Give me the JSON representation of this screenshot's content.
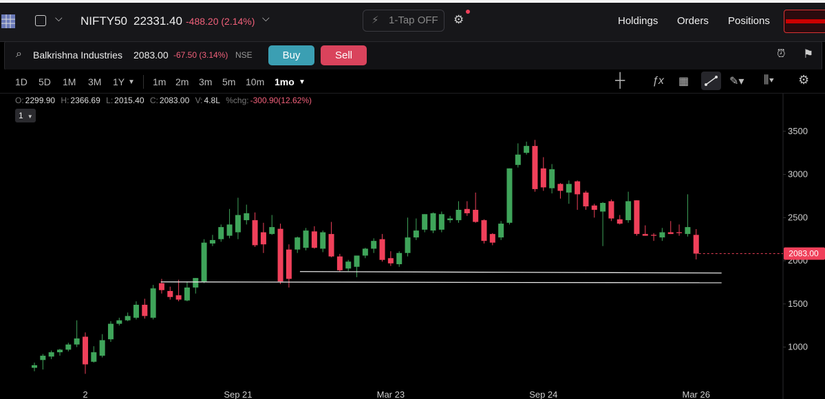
{
  "top_bar": {
    "index": "NIFTY50",
    "price": "22331.40",
    "change": "-488.20 (2.14%)",
    "one_tap": "1-Tap OFF",
    "nav": [
      "Holdings",
      "Orders",
      "Positions"
    ]
  },
  "instrument_bar": {
    "name": "Balkrishna Industries",
    "price": "2083.00",
    "change": "-67.50 (3.14%)",
    "exchange": "NSE",
    "buy": "Buy",
    "sell": "Sell"
  },
  "toolbar": {
    "ranges": [
      "1D",
      "5D",
      "1M",
      "3M",
      "1Y"
    ],
    "intervals": [
      "1m",
      "2m",
      "3m",
      "5m",
      "10m",
      "1mo"
    ]
  },
  "ohlc_legend": {
    "labels": [
      "O:",
      "H:",
      "L:",
      "C:",
      "V:",
      "%chg:"
    ],
    "values": [
      "2299.90",
      "2366.69",
      "2015.40",
      "2083.00",
      "4.8L",
      "-300.90(12.62%)"
    ],
    "pane": "1"
  },
  "chart_data": {
    "type": "candlestick",
    "categories": [
      null,
      null,
      null,
      null,
      null,
      null,
      "2",
      null,
      null,
      null,
      null,
      null,
      null,
      null,
      null,
      null,
      null,
      null,
      null,
      null,
      null,
      null,
      null,
      null,
      "Sep 21",
      null,
      null,
      null,
      null,
      null,
      null,
      null,
      null,
      null,
      null,
      null,
      null,
      null,
      null,
      null,
      null,
      null,
      "Mar 23",
      null,
      null,
      null,
      null,
      null,
      null,
      null,
      null,
      null,
      null,
      null,
      null,
      null,
      null,
      null,
      null,
      null,
      "Sep 24",
      null,
      null,
      null,
      null,
      null,
      null,
      null,
      null,
      null,
      null,
      null,
      null,
      null,
      null,
      null,
      null,
      null,
      "Mar 26"
    ],
    "open": [
      760,
      850,
      890,
      940,
      970,
      1030,
      1120,
      830,
      900,
      1090,
      1270,
      1310,
      1340,
      1490,
      1340,
      1740,
      1650,
      1600,
      1540,
      1690,
      1760,
      2200,
      2250,
      2290,
      2330,
      2470,
      2470,
      2330,
      2310,
      2370,
      2130,
      2130,
      2150,
      2340,
      2140,
      2310,
      2050,
      1910,
      1930,
      2060,
      2140,
      2250,
      2030,
      1960,
      2090,
      2270,
      2360,
      2350,
      2360,
      2470,
      2470,
      2600,
      2590,
      2470,
      2310,
      2270,
      2440,
      3110,
      3250,
      3330,
      3070,
      2840,
      2890,
      2790,
      2920,
      2790,
      2640,
      2570,
      2690,
      2480,
      2470,
      2700,
      2310,
      2300,
      2270,
      2330,
      2330,
      2310,
      2299.9
    ],
    "high": [
      820,
      920,
      960,
      980,
      1050,
      1310,
      1170,
      1010,
      1150,
      1300,
      1340,
      1400,
      1530,
      1560,
      1720,
      1790,
      1700,
      1780,
      1760,
      1800,
      2250,
      2300,
      2420,
      2600,
      2730,
      2650,
      2560,
      2440,
      2530,
      2430,
      2190,
      2280,
      2380,
      2400,
      2350,
      2450,
      2080,
      2010,
      2060,
      2150,
      2260,
      2310,
      2110,
      2110,
      2500,
      2490,
      2540,
      2560,
      2570,
      2520,
      2690,
      2690,
      2790,
      2480,
      2320,
      2460,
      3070,
      3360,
      3380,
      3400,
      3200,
      3120,
      2900,
      2930,
      2930,
      2810,
      2660,
      2680,
      2710,
      2530,
      2800,
      2700,
      2410,
      2320,
      2380,
      2460,
      2420,
      2770,
      2366.69
    ],
    "low": [
      720,
      740,
      860,
      900,
      950,
      1000,
      690,
      820,
      880,
      1060,
      1250,
      1300,
      1320,
      1330,
      1320,
      1620,
      1550,
      1530,
      1530,
      1620,
      1740,
      2170,
      2220,
      2260,
      2250,
      2420,
      2160,
      2090,
      2300,
      1730,
      1690,
      2090,
      2120,
      2140,
      2100,
      2040,
      1870,
      1880,
      1810,
      2030,
      2090,
      1990,
      1940,
      1930,
      2050,
      2240,
      2330,
      2320,
      2330,
      2440,
      2440,
      2520,
      2440,
      2200,
      2180,
      2240,
      2420,
      3080,
      3230,
      2800,
      2810,
      2780,
      2720,
      2660,
      2590,
      2590,
      2500,
      2170,
      2460,
      2420,
      2440,
      2290,
      2290,
      2230,
      2230,
      2310,
      2290,
      2280,
      2015.4
    ],
    "close": [
      790,
      900,
      940,
      970,
      1030,
      1100,
      800,
      940,
      1080,
      1270,
      1310,
      1360,
      1490,
      1360,
      1680,
      1660,
      1580,
      1550,
      1690,
      1800,
      2210,
      2240,
      2390,
      2420,
      2530,
      2550,
      2180,
      2190,
      2390,
      1760,
      1790,
      2270,
      2350,
      2150,
      2330,
      2050,
      1890,
      1990,
      2060,
      2140,
      2230,
      2010,
      1970,
      2090,
      2270,
      2350,
      2540,
      2550,
      2540,
      2490,
      2590,
      2550,
      2450,
      2230,
      2210,
      2430,
      3070,
      3230,
      3330,
      2830,
      2850,
      3060,
      2810,
      2890,
      2770,
      2630,
      2590,
      2670,
      2490,
      2430,
      2690,
      2310,
      2290,
      2290,
      2330,
      2310,
      2320,
      2390,
      2083
    ],
    "up_color": "#3fa45a",
    "down_color": "#f0405a",
    "ylim": [
      518,
      3905
    ],
    "yticks": [
      1000,
      1500,
      2000,
      2500,
      3000,
      3500
    ],
    "last_price": {
      "value": 2083,
      "label": "2083.00"
    },
    "drawn_lines": [
      {
        "x": [
          31.3,
          81
        ],
        "y": [
          1875,
          1858
        ]
      },
      {
        "x": [
          14.9,
          81
        ],
        "y": [
          1755,
          1745
        ]
      }
    ],
    "line_color": "#e8e8e8"
  }
}
